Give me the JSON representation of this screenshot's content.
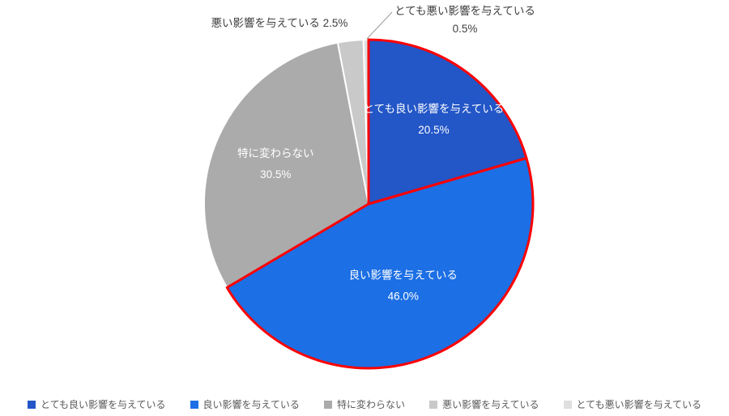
{
  "chart_data": {
    "type": "pie",
    "title": "",
    "categories": [
      "とても良い影響を与えている",
      "良い影響を与えている",
      "特に変わらない",
      "悪い影響を与えている",
      "とても悪い影響を与えている"
    ],
    "values": [
      20.5,
      46.0,
      30.5,
      2.5,
      0.5
    ],
    "value_labels": [
      "20.5%",
      "46.0%",
      "30.5%",
      "2.5%",
      "0.5%"
    ],
    "colors": [
      "#2356C7",
      "#1C6FE4",
      "#ABABAB",
      "#C9C9C9",
      "#DFDFDF"
    ],
    "slice_border_color": "#FFFFFF",
    "highlight_outline_color": "#FF0000",
    "highlighted_slices": [
      0,
      1
    ],
    "start_angle_deg": 0,
    "direction": "clockwise",
    "label_placement": [
      "inside",
      "inside",
      "inside",
      "outside",
      "outside"
    ],
    "inside_label_color": "#FFFFFF",
    "outside_label_color": "#3F3F3F",
    "leader_line_color": "#9A9A9A",
    "legend_position": "bottom",
    "legend_text_color": "#595959",
    "background_color": "#FFFFFF"
  }
}
